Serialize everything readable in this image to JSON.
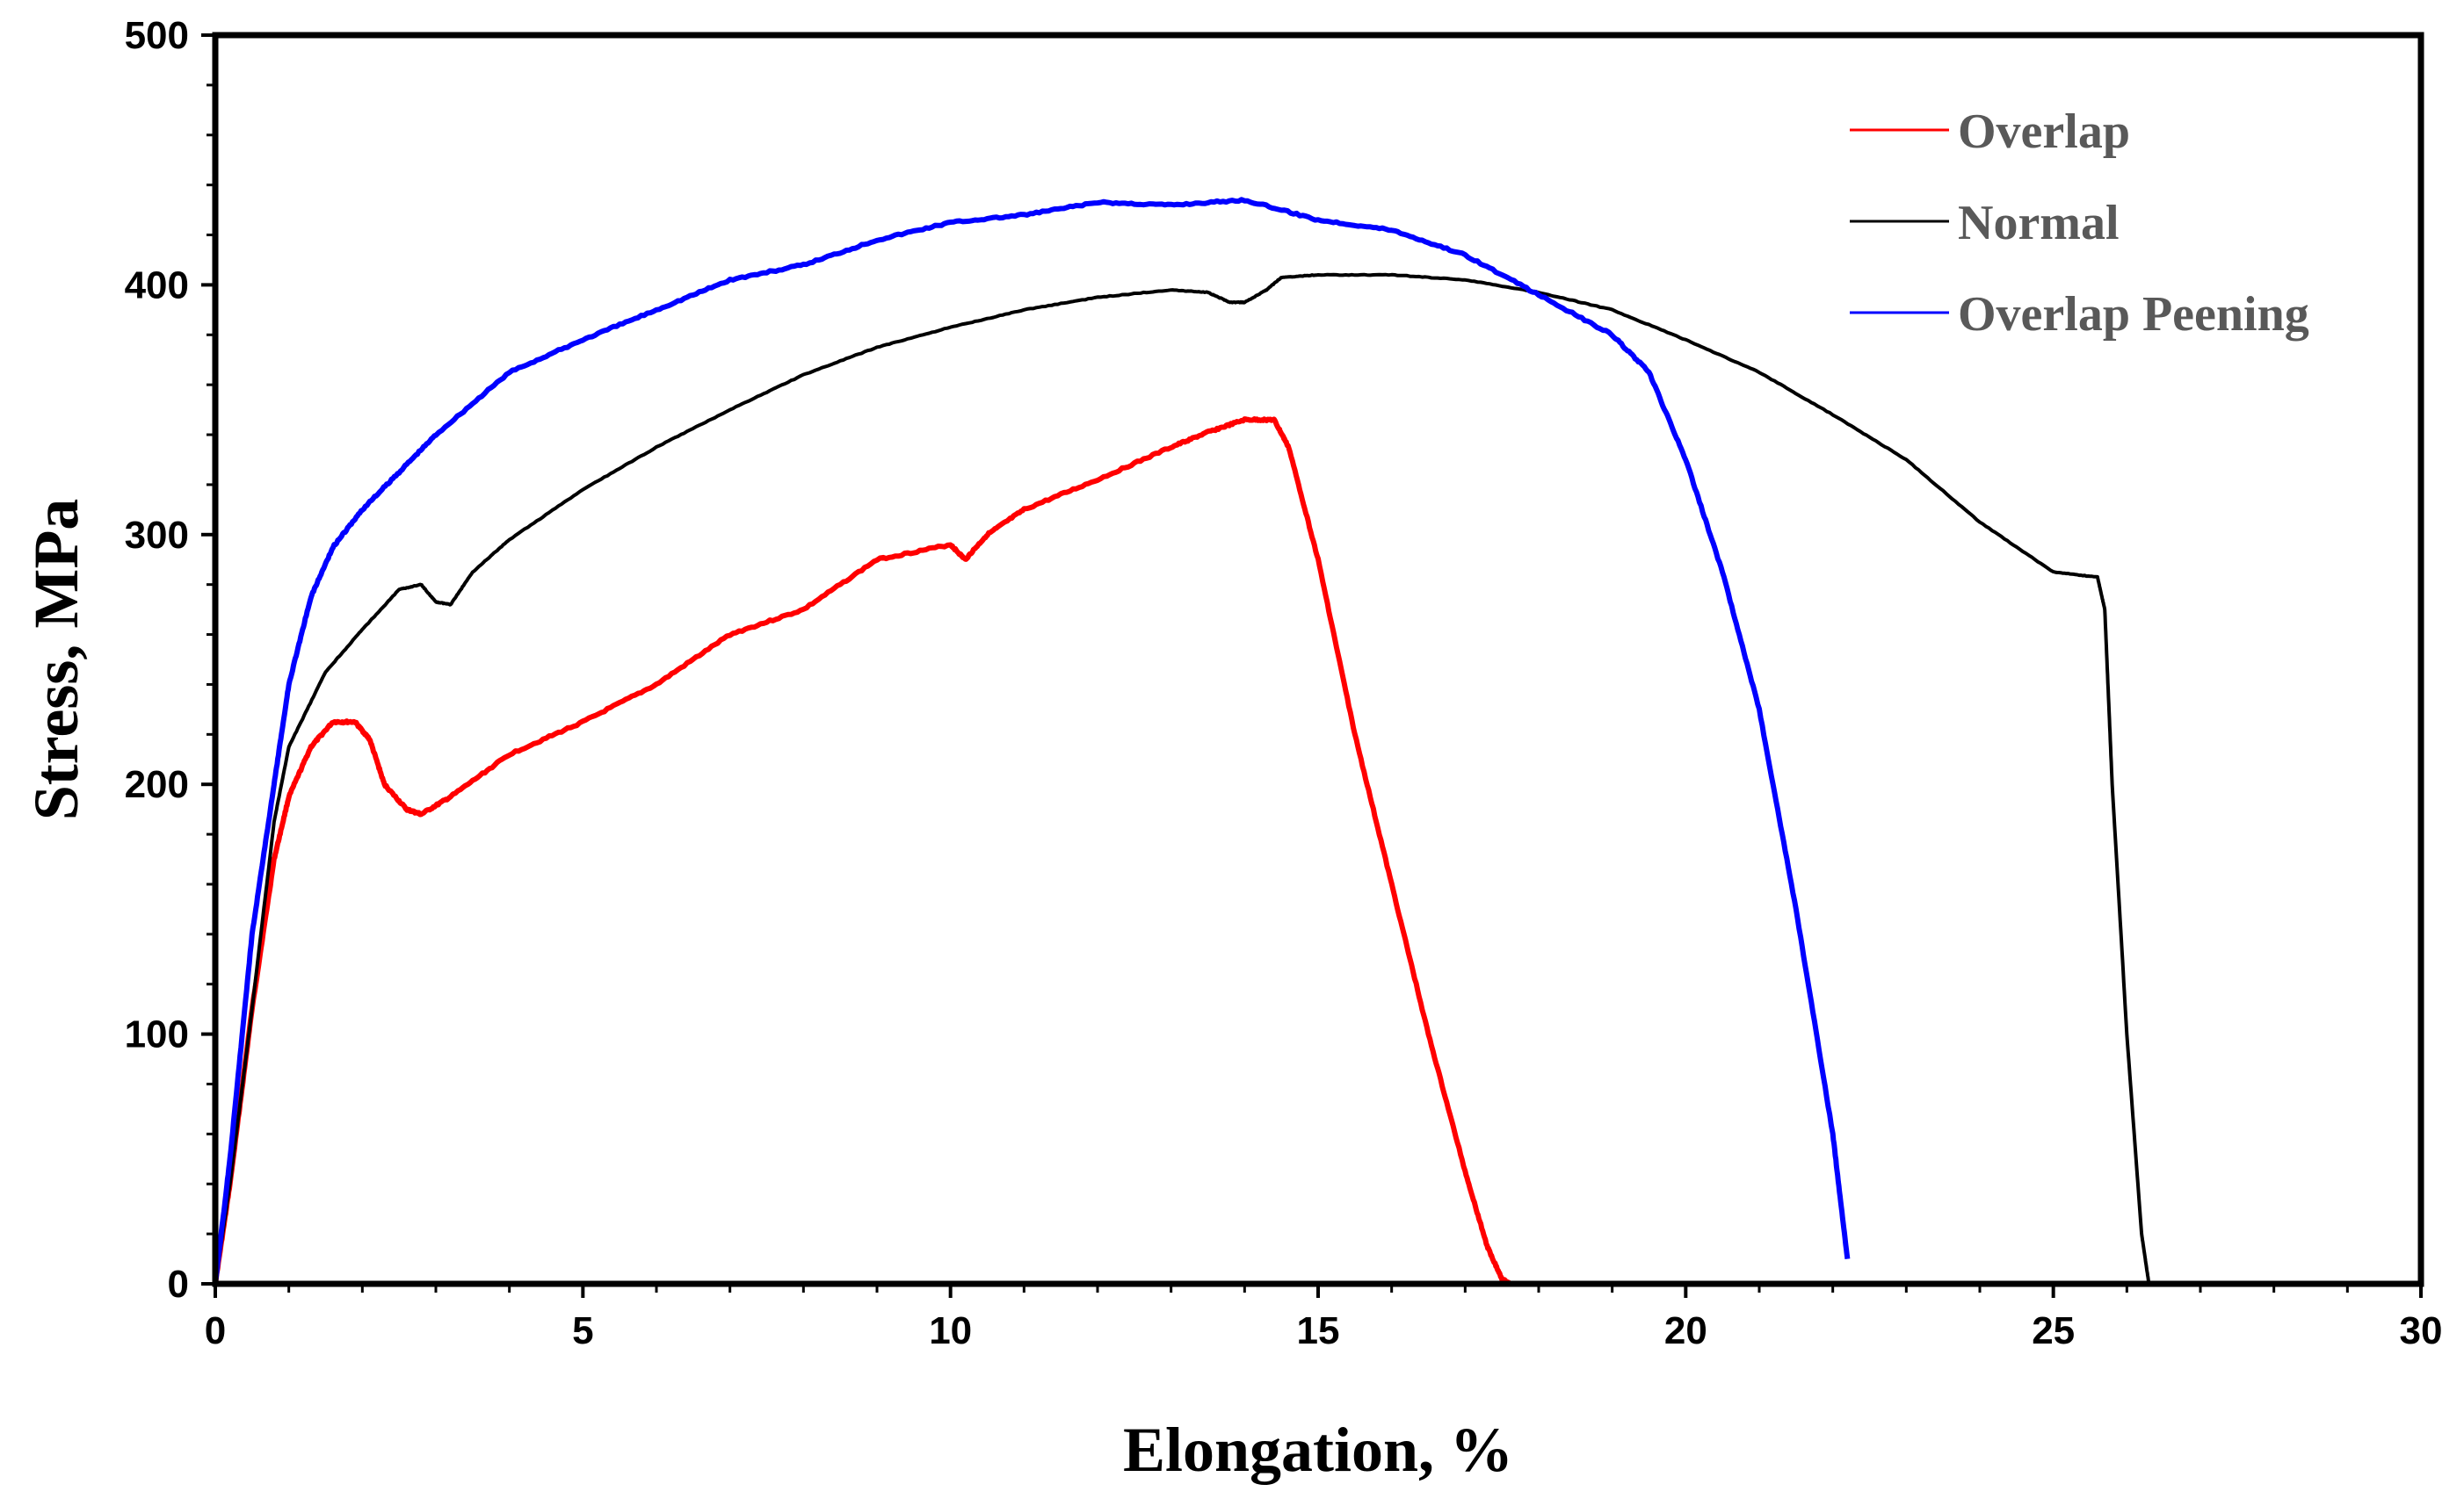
{
  "chart_data": {
    "type": "line",
    "title": "",
    "xlabel": "Elongation, %",
    "ylabel": "Stress, MPa",
    "xlim": [
      0,
      30
    ],
    "ylim": [
      0,
      500
    ],
    "xticks": [
      0,
      5,
      10,
      15,
      20,
      25,
      30
    ],
    "yticks": [
      0,
      100,
      200,
      300,
      400,
      500
    ],
    "grid": false,
    "legend_position": "top-right",
    "series": [
      {
        "name": "Overlap",
        "color": "#ff0000",
        "x": [
          0,
          0.2,
          0.5,
          0.8,
          1.0,
          1.3,
          1.6,
          1.9,
          2.1,
          2.3,
          2.6,
          2.8,
          3.2,
          4.0,
          5.0,
          6.0,
          7.0,
          8.0,
          9.0,
          10.0,
          10.2,
          10.5,
          11.0,
          12.0,
          13.0,
          13.5,
          14.0,
          14.4,
          14.6,
          15.0,
          15.5,
          16.0,
          16.5,
          17.0,
          17.3,
          17.5,
          17.6
        ],
        "y": [
          0,
          40,
          110,
          170,
          195,
          215,
          225,
          225,
          218,
          200,
          190,
          188,
          195,
          212,
          225,
          240,
          260,
          270,
          290,
          296,
          290,
          300,
          310,
          322,
          335,
          341,
          346,
          346,
          335,
          290,
          220,
          160,
          100,
          45,
          15,
          2,
          0
        ]
      },
      {
        "name": "Normal",
        "color": "#000000",
        "x": [
          0,
          0.2,
          0.5,
          0.8,
          1.0,
          1.5,
          2.0,
          2.5,
          2.8,
          3.0,
          3.2,
          3.5,
          4.0,
          5.0,
          6.0,
          7.0,
          8.0,
          9.0,
          10.0,
          11.0,
          12.0,
          13.0,
          13.5,
          13.8,
          14.0,
          14.3,
          14.5,
          15.0,
          16.0,
          17.0,
          18.0,
          19.0,
          20.0,
          21.0,
          22.0,
          23.0,
          24.0,
          25.0,
          25.6,
          25.7,
          25.8,
          26.0,
          26.2,
          26.3
        ],
        "y": [
          0,
          40,
          110,
          185,
          215,
          245,
          262,
          278,
          280,
          273,
          272,
          285,
          298,
          318,
          335,
          350,
          364,
          375,
          383,
          390,
          395,
          398,
          397,
          393,
          393,
          398,
          403,
          404,
          404,
          402,
          397,
          390,
          378,
          365,
          348,
          330,
          305,
          285,
          283,
          270,
          200,
          100,
          20,
          0
        ]
      },
      {
        "name": "Overlap Peening",
        "color": "#0000ff",
        "x": [
          0,
          0.2,
          0.5,
          0.8,
          1.0,
          1.3,
          1.6,
          2.0,
          2.5,
          3.0,
          4.0,
          5.0,
          6.0,
          7.0,
          8.0,
          9.0,
          10.0,
          11.0,
          12.0,
          13.0,
          14.0,
          15.0,
          16.0,
          17.0,
          18.0,
          19.0,
          19.5,
          20.0,
          20.5,
          21.0,
          21.5,
          22.0,
          22.2
        ],
        "y": [
          0,
          50,
          140,
          200,
          240,
          275,
          295,
          310,
          325,
          340,
          365,
          378,
          390,
          402,
          408,
          418,
          425,
          428,
          433,
          432,
          434,
          426,
          422,
          412,
          396,
          380,
          365,
          330,
          285,
          230,
          150,
          60,
          10
        ]
      }
    ]
  }
}
